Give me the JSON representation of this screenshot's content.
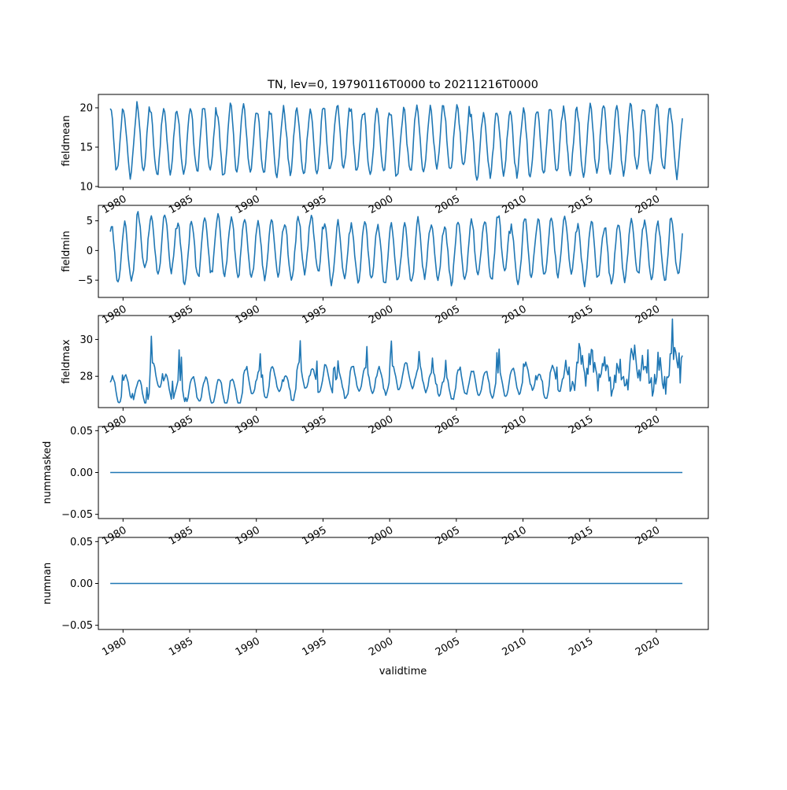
{
  "figure": {
    "title": "TN, lev=0, 19790116T0000 to 20211216T0000",
    "xlabel": "validtime",
    "line_color": "#1f77b4"
  },
  "chart_data": [
    {
      "type": "line",
      "ylabel": "fieldmean",
      "x": "monthly, 1979-01 to 2021-12",
      "xlim": [
        1978.15,
        2023.9
      ],
      "ylim": [
        9.9,
        21.7
      ],
      "yticks": [
        10,
        15,
        20
      ],
      "ytick_labels": [
        "10",
        "15",
        "20"
      ],
      "xtick_labels": [
        "1980",
        "1985",
        "1990",
        "1995",
        "2000",
        "2005",
        "2010",
        "2015",
        "2020"
      ],
      "seasonal_model": {
        "mean": 15.8,
        "amplitude": 4.1,
        "peak_month": 1,
        "year_variation": 0.6
      },
      "series": [
        {
          "values_description": "monthly field mean, range ~10.3 to ~21.1"
        }
      ]
    },
    {
      "type": "line",
      "ylabel": "fieldmin",
      "xlim": [
        1978.15,
        2023.9
      ],
      "ylim": [
        -7.9,
        7.6
      ],
      "yticks": [
        -5,
        0,
        5
      ],
      "ytick_labels": [
        "−5",
        "0",
        "5"
      ],
      "xtick_labels": [
        "1980",
        "1985",
        "1990",
        "1995",
        "2000",
        "2005",
        "2010",
        "2015",
        "2020"
      ],
      "seasonal_model": {
        "mean": 0.2,
        "amplitude": 4.8,
        "peak_month": 2,
        "year_variation": 1.2
      },
      "series": [
        {
          "values_description": "monthly field minimum, range ~-7.2 to ~6.9"
        }
      ]
    },
    {
      "type": "line",
      "ylabel": "fieldmax",
      "xlim": [
        1978.15,
        2023.9
      ],
      "ylim": [
        26.3,
        31.3
      ],
      "yticks": [
        28,
        30
      ],
      "ytick_labels": [
        "28",
        "30"
      ],
      "xtick_labels": [
        "1980",
        "1985",
        "1990",
        "1995",
        "2000",
        "2005",
        "2010",
        "2015",
        "2020"
      ],
      "seasonal_model": {
        "mean": 27.6,
        "amplitude": 0.7,
        "peak_month": 3,
        "year_variation": 0.5
      },
      "series": [
        {
          "values_description": "monthly field maximum, range ~26.7 to ~31.2, rising after 2013"
        }
      ]
    },
    {
      "type": "line",
      "ylabel": "nummasked",
      "xlim": [
        1978.15,
        2023.9
      ],
      "ylim": [
        -0.055,
        0.055
      ],
      "yticks": [
        -0.05,
        0.0,
        0.05
      ],
      "ytick_labels": [
        "−0.05",
        "0.00",
        "0.05"
      ],
      "xtick_labels": [
        "1980",
        "1985",
        "1990",
        "1995",
        "2000",
        "2005",
        "2010",
        "2015",
        "2020"
      ],
      "constant_value": 0.0
    },
    {
      "type": "line",
      "ylabel": "numnan",
      "xlim": [
        1978.15,
        2023.9
      ],
      "ylim": [
        -0.055,
        0.055
      ],
      "yticks": [
        -0.05,
        0.0,
        0.05
      ],
      "ytick_labels": [
        "−0.05",
        "0.00",
        "0.05"
      ],
      "xtick_labels": [
        "1980",
        "1985",
        "1990",
        "1995",
        "2000",
        "2005",
        "2010",
        "2015",
        "2020"
      ],
      "constant_value": 0.0
    }
  ],
  "x_ticks_years": [
    1980,
    1985,
    1990,
    1995,
    2000,
    2005,
    2010,
    2015,
    2020
  ],
  "data_start_year": 1979,
  "data_end_year": 2021
}
